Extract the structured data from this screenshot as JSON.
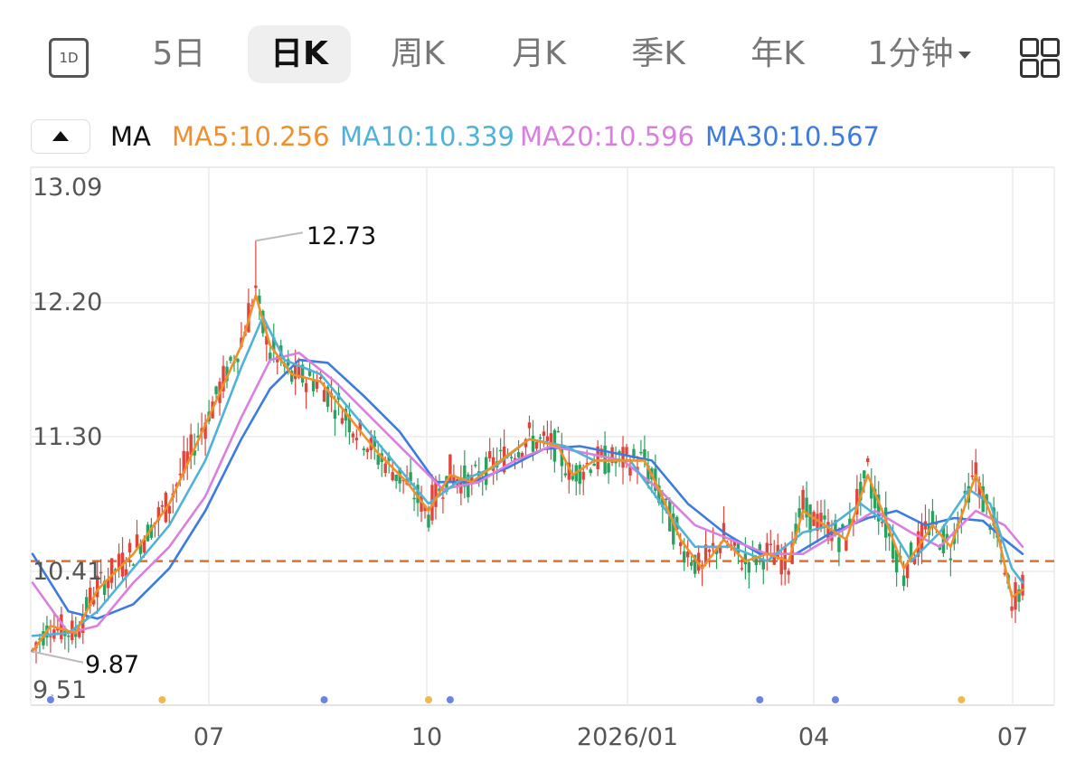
{
  "tabs": [
    {
      "label": "5日"
    },
    {
      "label": "日K"
    },
    {
      "label": "周K"
    },
    {
      "label": "月K"
    },
    {
      "label": "季K"
    },
    {
      "label": "年K"
    },
    {
      "label": "1分钟"
    }
  ],
  "tab_icon_label": "1D",
  "legend": {
    "ma_label": "MA",
    "ma5": "MA5:10.256",
    "ma10": "MA10:10.339",
    "ma20": "MA20:10.596",
    "ma30": "MA30:10.567"
  },
  "colors": {
    "ma5": "#f0902a",
    "ma10": "#4fb3d9",
    "ma20": "#d97fe0",
    "ma30": "#3c7be0",
    "up": "#e0453c",
    "down": "#2aa15e",
    "ref_line": "#e07030",
    "marker_blue": "#6a84e6",
    "marker_orange": "#f0b850"
  },
  "chart_data": {
    "type": "candlestick",
    "y_ticks": [
      "13.09",
      "12.20",
      "11.30",
      "10.41",
      "9.51"
    ],
    "ylim": [
      9.51,
      13.09
    ],
    "x_ticks": [
      "07",
      "10",
      "2026/01",
      "04",
      "07"
    ],
    "annotations": [
      {
        "label": "12.73",
        "value": 12.73,
        "type": "max"
      },
      {
        "label": "9.87",
        "value": 9.87,
        "type": "min"
      }
    ],
    "reference_line": 10.5,
    "ma_last": {
      "MA5": 10.256,
      "MA10": 10.339,
      "MA20": 10.596,
      "MA30": 10.567
    },
    "ma5_path": [
      [
        0,
        9.87
      ],
      [
        5,
        10.05
      ],
      [
        12,
        10.0
      ],
      [
        18,
        10.3
      ],
      [
        28,
        10.55
      ],
      [
        38,
        10.9
      ],
      [
        48,
        11.45
      ],
      [
        58,
        12.0
      ],
      [
        62,
        12.35
      ],
      [
        66,
        12.0
      ],
      [
        72,
        11.8
      ],
      [
        80,
        11.75
      ],
      [
        88,
        11.5
      ],
      [
        96,
        11.25
      ],
      [
        104,
        11.05
      ],
      [
        110,
        10.85
      ],
      [
        116,
        11.1
      ],
      [
        122,
        11.05
      ],
      [
        130,
        11.2
      ],
      [
        138,
        11.35
      ],
      [
        146,
        11.3
      ],
      [
        150,
        11.1
      ],
      [
        156,
        11.2
      ],
      [
        164,
        11.2
      ],
      [
        170,
        11.2
      ],
      [
        174,
        11.0
      ],
      [
        180,
        10.65
      ],
      [
        186,
        10.45
      ],
      [
        192,
        10.65
      ],
      [
        198,
        10.5
      ],
      [
        204,
        10.55
      ],
      [
        210,
        10.5
      ],
      [
        214,
        10.85
      ],
      [
        220,
        10.75
      ],
      [
        226,
        10.65
      ],
      [
        232,
        11.1
      ],
      [
        236,
        10.85
      ],
      [
        242,
        10.45
      ],
      [
        250,
        10.75
      ],
      [
        255,
        10.6
      ],
      [
        262,
        11.1
      ],
      [
        268,
        10.7
      ],
      [
        272,
        10.25
      ],
      [
        275,
        10.3
      ]
    ],
    "ma10_path": [
      [
        0,
        9.98
      ],
      [
        10,
        10.0
      ],
      [
        18,
        10.15
      ],
      [
        28,
        10.45
      ],
      [
        38,
        10.75
      ],
      [
        48,
        11.2
      ],
      [
        58,
        11.85
      ],
      [
        64,
        12.2
      ],
      [
        70,
        11.9
      ],
      [
        80,
        11.8
      ],
      [
        90,
        11.5
      ],
      [
        100,
        11.2
      ],
      [
        110,
        10.9
      ],
      [
        118,
        11.05
      ],
      [
        128,
        11.15
      ],
      [
        138,
        11.35
      ],
      [
        148,
        11.3
      ],
      [
        156,
        11.2
      ],
      [
        166,
        11.2
      ],
      [
        176,
        10.85
      ],
      [
        184,
        10.6
      ],
      [
        194,
        10.6
      ],
      [
        204,
        10.5
      ],
      [
        214,
        10.7
      ],
      [
        222,
        10.75
      ],
      [
        230,
        10.9
      ],
      [
        238,
        10.75
      ],
      [
        244,
        10.5
      ],
      [
        252,
        10.7
      ],
      [
        260,
        11.0
      ],
      [
        266,
        10.9
      ],
      [
        272,
        10.45
      ],
      [
        275,
        10.35
      ]
    ],
    "ma20_path": [
      [
        0,
        10.35
      ],
      [
        10,
        10.0
      ],
      [
        18,
        10.05
      ],
      [
        28,
        10.35
      ],
      [
        38,
        10.6
      ],
      [
        48,
        10.95
      ],
      [
        58,
        11.5
      ],
      [
        66,
        11.9
      ],
      [
        74,
        11.95
      ],
      [
        84,
        11.75
      ],
      [
        94,
        11.5
      ],
      [
        104,
        11.25
      ],
      [
        114,
        11.0
      ],
      [
        124,
        11.05
      ],
      [
        134,
        11.2
      ],
      [
        144,
        11.3
      ],
      [
        154,
        11.25
      ],
      [
        164,
        11.2
      ],
      [
        174,
        11.0
      ],
      [
        184,
        10.75
      ],
      [
        194,
        10.65
      ],
      [
        204,
        10.55
      ],
      [
        214,
        10.55
      ],
      [
        224,
        10.7
      ],
      [
        234,
        10.85
      ],
      [
        244,
        10.7
      ],
      [
        252,
        10.6
      ],
      [
        262,
        10.85
      ],
      [
        270,
        10.75
      ],
      [
        275,
        10.6
      ]
    ],
    "ma30_path": [
      [
        0,
        10.55
      ],
      [
        10,
        10.15
      ],
      [
        18,
        10.1
      ],
      [
        28,
        10.2
      ],
      [
        38,
        10.45
      ],
      [
        48,
        10.85
      ],
      [
        58,
        11.35
      ],
      [
        66,
        11.7
      ],
      [
        74,
        11.9
      ],
      [
        82,
        11.88
      ],
      [
        92,
        11.65
      ],
      [
        102,
        11.4
      ],
      [
        112,
        11.05
      ],
      [
        122,
        11.05
      ],
      [
        132,
        11.15
      ],
      [
        142,
        11.28
      ],
      [
        152,
        11.3
      ],
      [
        162,
        11.25
      ],
      [
        172,
        11.2
      ],
      [
        182,
        10.9
      ],
      [
        192,
        10.7
      ],
      [
        202,
        10.55
      ],
      [
        212,
        10.55
      ],
      [
        222,
        10.7
      ],
      [
        232,
        10.8
      ],
      [
        240,
        10.85
      ],
      [
        248,
        10.75
      ],
      [
        256,
        10.8
      ],
      [
        264,
        10.78
      ],
      [
        270,
        10.65
      ],
      [
        275,
        10.55
      ]
    ],
    "event_markers": [
      {
        "day": 5,
        "kind": "blue"
      },
      {
        "day": 36,
        "kind": "orange"
      },
      {
        "day": 81,
        "kind": "blue"
      },
      {
        "day": 110,
        "kind": "orange"
      },
      {
        "day": 116,
        "kind": "blue"
      },
      {
        "day": 202,
        "kind": "blue"
      },
      {
        "day": 223,
        "kind": "blue"
      },
      {
        "day": 258,
        "kind": "orange"
      }
    ],
    "days": 276
  }
}
